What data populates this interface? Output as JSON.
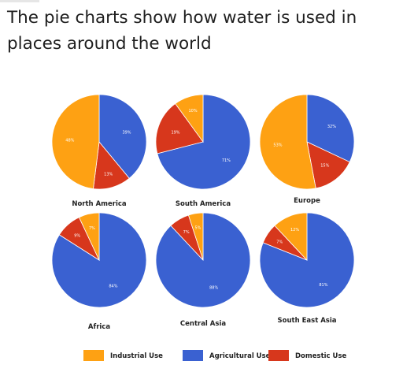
{
  "page": {
    "title": "The pie charts show how water is used in places around the world"
  },
  "colors": {
    "industrial": "#fea113",
    "agricultural": "#3a61d1",
    "domestic": "#d7371c"
  },
  "chart_data": {
    "type": "pie",
    "categories": [
      "Industrial Use",
      "Agricultural Use",
      "Domestic Use"
    ],
    "legend": [
      "Industrial Use",
      "Agricultural Use",
      "Domestic Use"
    ],
    "legend_position": "bottom",
    "pies": [
      {
        "name": "North America",
        "values": {
          "industrial": 48,
          "agricultural": 39,
          "domestic": 13
        },
        "labels": {
          "industrial": "48%",
          "agricultural": "39%",
          "domestic": "13%"
        }
      },
      {
        "name": "South America",
        "values": {
          "industrial": 10,
          "agricultural": 71,
          "domestic": 19
        },
        "labels": {
          "industrial": "10%",
          "agricultural": "71%",
          "domestic": "19%"
        }
      },
      {
        "name": "Europe",
        "values": {
          "industrial": 53,
          "agricultural": 32,
          "domestic": 15
        },
        "labels": {
          "industrial": "53%",
          "agricultural": "32%",
          "domestic": "15%"
        }
      },
      {
        "name": "Africa",
        "values": {
          "industrial": 7,
          "agricultural": 84,
          "domestic": 9
        },
        "labels": {
          "industrial": "7%",
          "agricultural": "84%",
          "domestic": "9%"
        }
      },
      {
        "name": "Central Asia",
        "values": {
          "industrial": 5,
          "agricultural": 88,
          "domestic": 7
        },
        "labels": {
          "industrial": "5%",
          "agricultural": "88%",
          "domestic": "7%"
        }
      },
      {
        "name": "South East Asia",
        "values": {
          "industrial": 12,
          "agricultural": 81,
          "domestic": 7
        },
        "labels": {
          "industrial": "12%",
          "agricultural": "81%",
          "domestic": "7%"
        }
      }
    ]
  }
}
